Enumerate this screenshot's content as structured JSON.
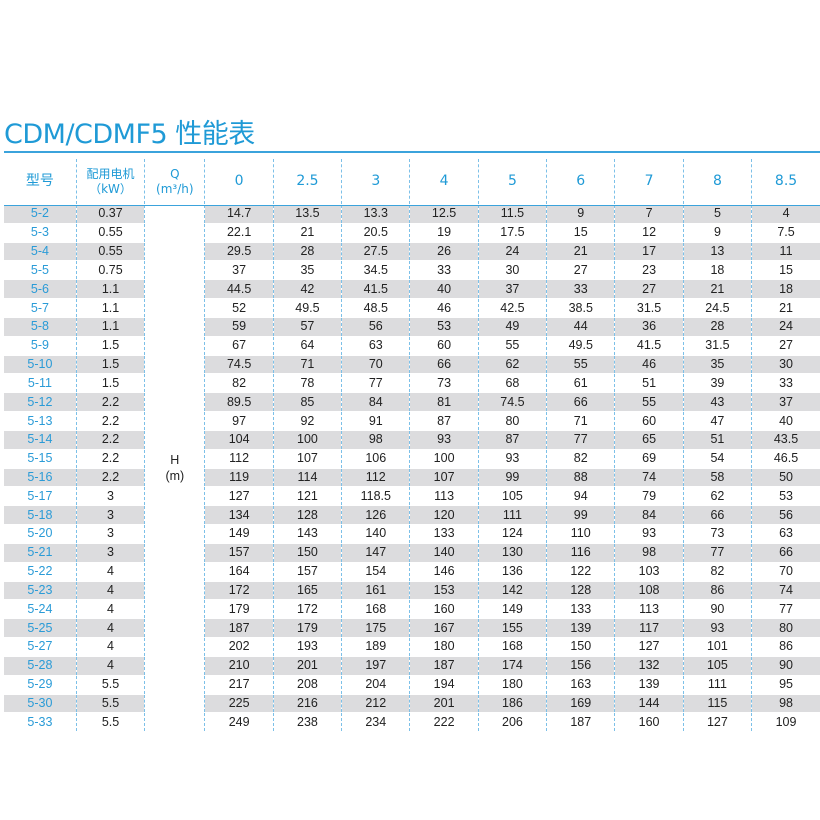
{
  "title": "CDM/CDMF5 性能表",
  "header": {
    "model": "型号",
    "power_line1": "配用电机",
    "power_line2": "（kW）",
    "q_line1": "Q",
    "q_line2": "(m³/h)",
    "flows": [
      "0",
      "2.5",
      "3",
      "4",
      "5",
      "6",
      "7",
      "8",
      "8.5"
    ]
  },
  "h_label_line1": "H",
  "h_label_line2": "(m)",
  "rows": [
    {
      "model": "5-2",
      "power": "0.37",
      "h": [
        "14.7",
        "13.5",
        "13.3",
        "12.5",
        "11.5",
        "9",
        "7",
        "5",
        "4"
      ]
    },
    {
      "model": "5-3",
      "power": "0.55",
      "h": [
        "22.1",
        "21",
        "20.5",
        "19",
        "17.5",
        "15",
        "12",
        "9",
        "7.5"
      ]
    },
    {
      "model": "5-4",
      "power": "0.55",
      "h": [
        "29.5",
        "28",
        "27.5",
        "26",
        "24",
        "21",
        "17",
        "13",
        "11"
      ]
    },
    {
      "model": "5-5",
      "power": "0.75",
      "h": [
        "37",
        "35",
        "34.5",
        "33",
        "30",
        "27",
        "23",
        "18",
        "15"
      ]
    },
    {
      "model": "5-6",
      "power": "1.1",
      "h": [
        "44.5",
        "42",
        "41.5",
        "40",
        "37",
        "33",
        "27",
        "21",
        "18"
      ]
    },
    {
      "model": "5-7",
      "power": "1.1",
      "h": [
        "52",
        "49.5",
        "48.5",
        "46",
        "42.5",
        "38.5",
        "31.5",
        "24.5",
        "21"
      ]
    },
    {
      "model": "5-8",
      "power": "1.1",
      "h": [
        "59",
        "57",
        "56",
        "53",
        "49",
        "44",
        "36",
        "28",
        "24"
      ]
    },
    {
      "model": "5-9",
      "power": "1.5",
      "h": [
        "67",
        "64",
        "63",
        "60",
        "55",
        "49.5",
        "41.5",
        "31.5",
        "27"
      ]
    },
    {
      "model": "5-10",
      "power": "1.5",
      "h": [
        "74.5",
        "71",
        "70",
        "66",
        "62",
        "55",
        "46",
        "35",
        "30"
      ]
    },
    {
      "model": "5-11",
      "power": "1.5",
      "h": [
        "82",
        "78",
        "77",
        "73",
        "68",
        "61",
        "51",
        "39",
        "33"
      ]
    },
    {
      "model": "5-12",
      "power": "2.2",
      "h": [
        "89.5",
        "85",
        "84",
        "81",
        "74.5",
        "66",
        "55",
        "43",
        "37"
      ]
    },
    {
      "model": "5-13",
      "power": "2.2",
      "h": [
        "97",
        "92",
        "91",
        "87",
        "80",
        "71",
        "60",
        "47",
        "40"
      ]
    },
    {
      "model": "5-14",
      "power": "2.2",
      "h": [
        "104",
        "100",
        "98",
        "93",
        "87",
        "77",
        "65",
        "51",
        "43.5"
      ]
    },
    {
      "model": "5-15",
      "power": "2.2",
      "h": [
        "112",
        "107",
        "106",
        "100",
        "93",
        "82",
        "69",
        "54",
        "46.5"
      ]
    },
    {
      "model": "5-16",
      "power": "2.2",
      "h": [
        "119",
        "114",
        "112",
        "107",
        "99",
        "88",
        "74",
        "58",
        "50"
      ]
    },
    {
      "model": "5-17",
      "power": "3",
      "h": [
        "127",
        "121",
        "118.5",
        "113",
        "105",
        "94",
        "79",
        "62",
        "53"
      ]
    },
    {
      "model": "5-18",
      "power": "3",
      "h": [
        "134",
        "128",
        "126",
        "120",
        "111",
        "99",
        "84",
        "66",
        "56"
      ]
    },
    {
      "model": "5-20",
      "power": "3",
      "h": [
        "149",
        "143",
        "140",
        "133",
        "124",
        "110",
        "93",
        "73",
        "63"
      ]
    },
    {
      "model": "5-21",
      "power": "3",
      "h": [
        "157",
        "150",
        "147",
        "140",
        "130",
        "116",
        "98",
        "77",
        "66"
      ]
    },
    {
      "model": "5-22",
      "power": "4",
      "h": [
        "164",
        "157",
        "154",
        "146",
        "136",
        "122",
        "103",
        "82",
        "70"
      ]
    },
    {
      "model": "5-23",
      "power": "4",
      "h": [
        "172",
        "165",
        "161",
        "153",
        "142",
        "128",
        "108",
        "86",
        "74"
      ]
    },
    {
      "model": "5-24",
      "power": "4",
      "h": [
        "179",
        "172",
        "168",
        "160",
        "149",
        "133",
        "113",
        "90",
        "77"
      ]
    },
    {
      "model": "5-25",
      "power": "4",
      "h": [
        "187",
        "179",
        "175",
        "167",
        "155",
        "139",
        "117",
        "93",
        "80"
      ]
    },
    {
      "model": "5-27",
      "power": "4",
      "h": [
        "202",
        "193",
        "189",
        "180",
        "168",
        "150",
        "127",
        "101",
        "86"
      ]
    },
    {
      "model": "5-28",
      "power": "4",
      "h": [
        "210",
        "201",
        "197",
        "187",
        "174",
        "156",
        "132",
        "105",
        "90"
      ]
    },
    {
      "model": "5-29",
      "power": "5.5",
      "h": [
        "217",
        "208",
        "204",
        "194",
        "180",
        "163",
        "139",
        "111",
        "95"
      ]
    },
    {
      "model": "5-30",
      "power": "5.5",
      "h": [
        "225",
        "216",
        "212",
        "201",
        "186",
        "169",
        "144",
        "115",
        "98"
      ]
    },
    {
      "model": "5-33",
      "power": "5.5",
      "h": [
        "249",
        "238",
        "234",
        "222",
        "206",
        "187",
        "160",
        "127",
        "109"
      ]
    }
  ]
}
